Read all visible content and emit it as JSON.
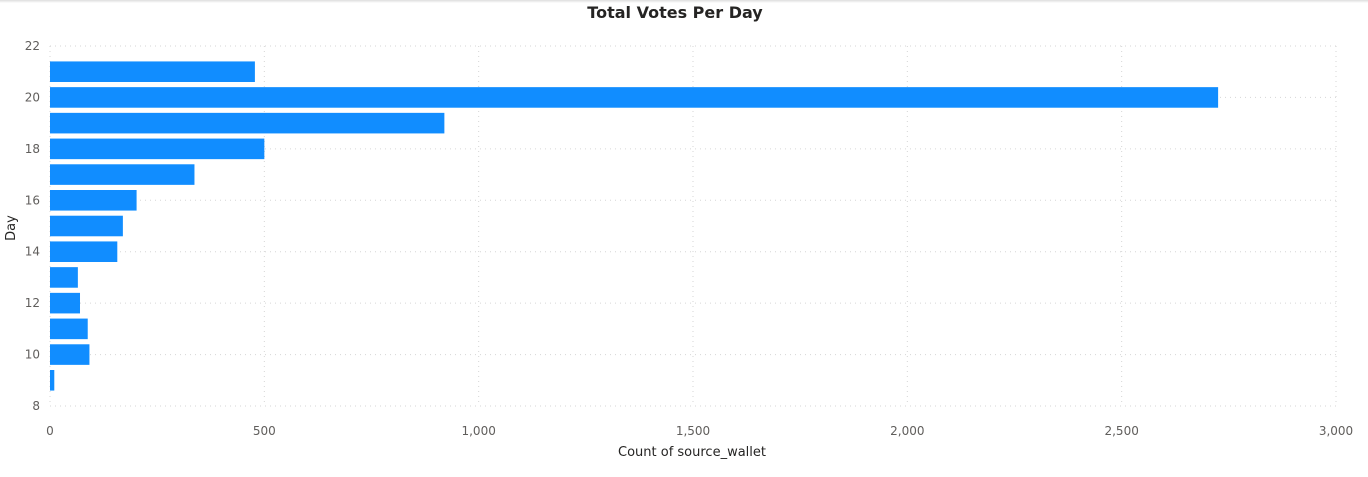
{
  "chart_data": {
    "type": "bar",
    "orientation": "horizontal",
    "title": "Total Votes Per Day",
    "xlabel": "Count of source_wallet",
    "ylabel": "Day",
    "xlim": [
      0,
      3000
    ],
    "ylim": [
      8,
      22
    ],
    "x_ticks": [
      0,
      500,
      1000,
      1500,
      2000,
      2500,
      3000
    ],
    "x_tick_labels": [
      "0",
      "500",
      "1,000",
      "1,500",
      "2,000",
      "2,500",
      "3,000"
    ],
    "y_ticks": [
      8,
      10,
      12,
      14,
      16,
      18,
      20,
      22
    ],
    "y_tick_labels": [
      "8",
      "10",
      "12",
      "14",
      "16",
      "18",
      "20",
      "22"
    ],
    "categories": [
      9,
      10,
      11,
      12,
      13,
      14,
      15,
      16,
      17,
      18,
      19,
      20,
      21
    ],
    "values": [
      10,
      92,
      88,
      70,
      65,
      157,
      170,
      202,
      337,
      500,
      920,
      2725,
      478
    ],
    "grid": true,
    "bar_color": "#118dff"
  }
}
